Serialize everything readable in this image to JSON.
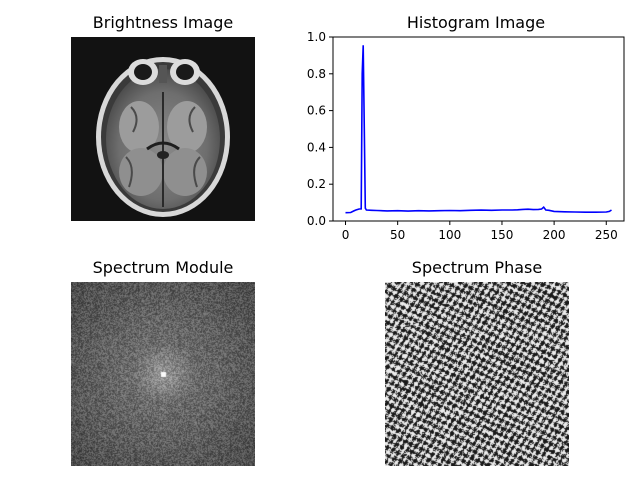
{
  "panels": {
    "brightness": {
      "title": "Brightness Image"
    },
    "histogram": {
      "title": "Histogram Image"
    },
    "spectrum_module": {
      "title": "Spectrum Module"
    },
    "spectrum_phase": {
      "title": "Spectrum Phase"
    }
  },
  "colors": {
    "line": "#0000ff",
    "axis": "#000000",
    "background": "#ffffff"
  },
  "chart_data": [
    {
      "type": "image",
      "title": "Brightness Image",
      "content": "grayscale axial MRI brain slice on black background"
    },
    {
      "type": "line",
      "title": "Histogram Image",
      "xlabel": "",
      "ylabel": "",
      "xlim": [
        -12,
        267
      ],
      "ylim": [
        0,
        1.0
      ],
      "xticks": [
        0,
        50,
        100,
        150,
        200,
        250
      ],
      "yticks": [
        0.0,
        0.2,
        0.4,
        0.6,
        0.8,
        1.0
      ],
      "xtick_labels": [
        "0",
        "50",
        "100",
        "150",
        "200",
        "250"
      ],
      "ytick_labels": [
        "0.0",
        "0.2",
        "0.4",
        "0.6",
        "0.8",
        "1.0"
      ],
      "grid": false,
      "series": [
        {
          "color": "#0000ff",
          "x": [
            0,
            5,
            8,
            10,
            13,
            15,
            16,
            17,
            18,
            19,
            20,
            25,
            30,
            40,
            50,
            60,
            70,
            80,
            90,
            100,
            110,
            120,
            130,
            140,
            150,
            160,
            165,
            170,
            175,
            180,
            185,
            188,
            190,
            192,
            195,
            200,
            210,
            220,
            230,
            240,
            250,
            253,
            255
          ],
          "y": [
            0.045,
            0.046,
            0.055,
            0.06,
            0.065,
            0.066,
            0.8,
            0.955,
            0.5,
            0.07,
            0.06,
            0.058,
            0.057,
            0.055,
            0.056,
            0.054,
            0.056,
            0.055,
            0.056,
            0.057,
            0.056,
            0.058,
            0.059,
            0.058,
            0.06,
            0.06,
            0.061,
            0.063,
            0.064,
            0.062,
            0.063,
            0.065,
            0.075,
            0.06,
            0.058,
            0.052,
            0.05,
            0.049,
            0.048,
            0.048,
            0.049,
            0.052,
            0.06
          ]
        }
      ]
    },
    {
      "type": "image",
      "title": "Spectrum Module",
      "content": "log-magnitude 2D Fourier spectrum, gray noise with bright center"
    },
    {
      "type": "image",
      "title": "Spectrum Phase",
      "content": "2D Fourier phase map, high-contrast black and white noise"
    }
  ]
}
